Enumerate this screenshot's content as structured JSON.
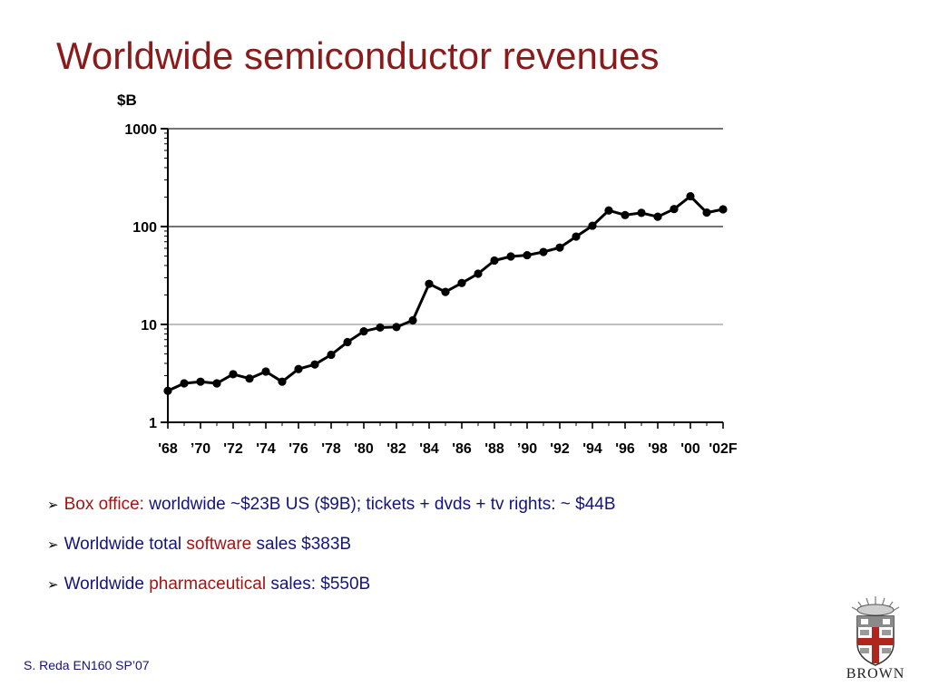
{
  "slide": {
    "title": "Worldwide semiconductor revenues",
    "footer": "S. Reda EN160 SP’07",
    "logo_text": "BROWN",
    "logo_icon": "brown-university-seal-icon"
  },
  "colors": {
    "title": "#8b1a1a",
    "body_text": "#14147a",
    "highlight": "#a21414",
    "series": "#000000"
  },
  "bullets": [
    {
      "highlight": "Box office:",
      "rest": " worldwide ~$23B US ($9B); tickets + dvds + tv rights: ~ $44B"
    },
    {
      "pre": "Worldwide total ",
      "highlight": "software",
      "post": " sales $383B"
    },
    {
      "pre": "Worldwide ",
      "highlight": "pharmaceutical",
      "post": " sales: $550B"
    }
  ],
  "chart_data": {
    "type": "line",
    "title": "",
    "xlabel": "",
    "ylabel": "$B",
    "yscale": "log",
    "ylim": [
      1,
      1000
    ],
    "yticks": [
      1,
      10,
      100,
      1000
    ],
    "ytick_labels": [
      "1",
      "10",
      "100",
      "1000"
    ],
    "xlim": [
      1968,
      2002
    ],
    "xticks": [
      1968,
      1970,
      1972,
      1974,
      1976,
      1978,
      1980,
      1982,
      1984,
      1986,
      1988,
      1990,
      1992,
      1994,
      1996,
      1998,
      2000,
      2002
    ],
    "xtick_labels": [
      "'68",
      "’70",
      "'72",
      "'74",
      "'76",
      "'78",
      "'80",
      "'82",
      "'84",
      "'86",
      "'88",
      "’90",
      "'92",
      "'94",
      "'96",
      "'98",
      "'00",
      "'02F"
    ],
    "grid": "horizontal lines at major y ticks",
    "legend": "none",
    "series": [
      {
        "x": [
          1968,
          1969,
          1970,
          1971,
          1972,
          1973,
          1974,
          1975,
          1976,
          1977,
          1978,
          1979,
          1980,
          1981,
          1982,
          1983,
          1984,
          1985,
          1986,
          1987,
          1988,
          1989,
          1990,
          1991,
          1992,
          1993,
          1994,
          1995,
          1996,
          1997,
          1998,
          1999,
          2000,
          2001,
          2002
        ],
        "values": [
          2.1,
          2.5,
          2.6,
          2.5,
          3.1,
          2.8,
          3.3,
          2.6,
          3.5,
          3.9,
          4.9,
          6.6,
          8.5,
          9.3,
          9.4,
          11,
          26,
          21.5,
          26.5,
          33,
          45,
          49.5,
          51,
          55,
          61,
          79,
          102,
          146,
          131,
          138,
          126,
          151,
          204,
          139,
          150
        ]
      }
    ]
  }
}
